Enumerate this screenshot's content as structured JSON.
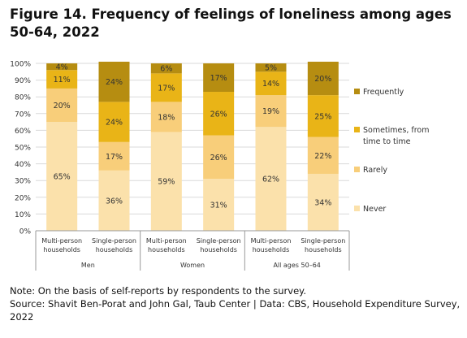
{
  "title": "Figure 14. Frequency of feelings of loneliness among ages 50-64, 2022",
  "chart_data": {
    "type": "bar",
    "stacked": true,
    "y_tick_labels": [
      "0%",
      "10%",
      "20%",
      "30%",
      "40%",
      "50%",
      "60%",
      "70%",
      "80%",
      "90%",
      "100%"
    ],
    "ylim": [
      0,
      100
    ],
    "grid": true,
    "legend_position": "right",
    "categories": [
      "Multi-person households",
      "Single-person households",
      "Multi-person households",
      "Single-person households",
      "Multi-person households",
      "Single-person households"
    ],
    "groups": [
      {
        "label": "Men",
        "categories": [
          0,
          1
        ]
      },
      {
        "label": "Women",
        "categories": [
          2,
          3
        ]
      },
      {
        "label": "All ages 50–64",
        "categories": [
          4,
          5
        ]
      }
    ],
    "series": [
      {
        "name": "Never",
        "color": "#fbe1ab",
        "values": [
          65,
          36,
          59,
          31,
          62,
          34
        ],
        "labels": [
          "65%",
          "36%",
          "59%",
          "31%",
          "62%",
          "34%"
        ]
      },
      {
        "name": "Rarely",
        "color": "#f8ce7a",
        "values": [
          20,
          17,
          18,
          26,
          19,
          22
        ],
        "labels": [
          "20%",
          "17%",
          "18%",
          "26%",
          "19%",
          "22%"
        ]
      },
      {
        "name": "Sometimes, from time to time",
        "color": "#e9b417",
        "values": [
          11,
          24,
          17,
          26,
          14,
          25
        ],
        "labels": [
          "11%",
          "24%",
          "17%",
          "26%",
          "14%",
          "25%"
        ]
      },
      {
        "name": "Frequently",
        "color": "#b68d11",
        "values": [
          4,
          24,
          6,
          17,
          5,
          20
        ],
        "labels": [
          "4%",
          "24%",
          "6%",
          "17%",
          "5%",
          "20%"
        ]
      }
    ]
  },
  "notes": {
    "note": "Note: On the basis of self-reports by respondents to the survey.",
    "source": "Source: Shavit Ben-Porat and John Gal, Taub Center | Data: CBS, Household Expenditure Survey, 2022"
  }
}
